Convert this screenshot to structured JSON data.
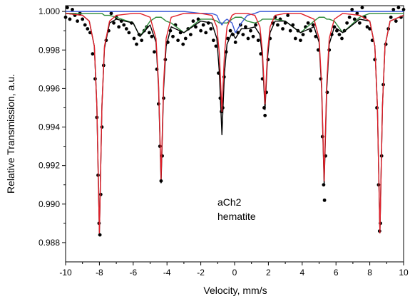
{
  "chart_data": {
    "type": "line",
    "xlabel": "Velocity, mm/s",
    "ylabel": "Relative Transmission, a.u.",
    "annotations": [
      "aCh2",
      "hematite"
    ],
    "xlim": [
      -10,
      10
    ],
    "xticks": [
      -10,
      -8,
      -6,
      -4,
      -2,
      0,
      2,
      4,
      6,
      8,
      10
    ],
    "ylim": [
      0.987,
      1.0003
    ],
    "yticks": [
      {
        "value": 0.988,
        "label": "0.988"
      },
      {
        "value": 0.99,
        "label": "0.990"
      },
      {
        "value": 0.992,
        "label": "0.992"
      },
      {
        "value": 0.994,
        "label": "0.994"
      },
      {
        "value": 0.996,
        "label": "0.996"
      },
      {
        "value": 0.998,
        "label": "0.998"
      },
      {
        "value": 1.0,
        "label": "1.000"
      }
    ],
    "x": [
      -10,
      -9,
      -8.6,
      -8.3,
      -8.15,
      -8,
      -7.85,
      -7.7,
      -7.4,
      -7,
      -6,
      -5.6,
      -5,
      -4.65,
      -4.5,
      -4.35,
      -4.2,
      -4.05,
      -3.75,
      -3,
      -2,
      -1.35,
      -1.05,
      -0.9,
      -0.75,
      -0.6,
      -0.45,
      -0.15,
      0.05,
      0.4,
      0.75,
      1.2,
      1.5,
      1.65,
      1.8,
      1.95,
      2.1,
      2.4,
      3,
      3.9,
      4.7,
      5,
      5.15,
      5.3,
      5.45,
      5.6,
      5.9,
      6.4,
      7.4,
      8,
      8.3,
      8.45,
      8.6,
      8.75,
      8.9,
      9.2,
      10
    ],
    "series": [
      {
        "type": "scatter",
        "color": "#000000",
        "x": [
          -10,
          -9.9,
          -9.75,
          -9.6,
          -9.45,
          -9.3,
          -9.15,
          -9.0,
          -8.85,
          -8.7,
          -8.55,
          -8.4,
          -8.25,
          -8.15,
          -8.08,
          -8.02,
          -7.97,
          -7.92,
          -7.85,
          -7.75,
          -7.6,
          -7.45,
          -7.3,
          -7.15,
          -7.0,
          -6.85,
          -6.7,
          -6.55,
          -6.4,
          -6.25,
          -6.1,
          -5.95,
          -5.8,
          -5.65,
          -5.5,
          -5.35,
          -5.2,
          -5.05,
          -4.9,
          -4.75,
          -4.6,
          -4.5,
          -4.42,
          -4.35,
          -4.28,
          -4.2,
          -4.1,
          -3.95,
          -3.8,
          -3.65,
          -3.5,
          -3.35,
          -3.2,
          -3.05,
          -2.9,
          -2.75,
          -2.6,
          -2.45,
          -2.3,
          -2.15,
          -2.0,
          -1.85,
          -1.7,
          -1.55,
          -1.4,
          -1.25,
          -1.1,
          -0.95,
          -0.85,
          -0.78,
          -0.7,
          -0.62,
          -0.5,
          -0.4,
          -0.25,
          -0.1,
          0.05,
          0.2,
          0.35,
          0.5,
          0.65,
          0.8,
          0.95,
          1.1,
          1.25,
          1.4,
          1.55,
          1.65,
          1.75,
          1.8,
          1.88,
          1.98,
          2.1,
          2.25,
          2.4,
          2.55,
          2.7,
          2.85,
          3.0,
          3.15,
          3.3,
          3.45,
          3.6,
          3.75,
          3.9,
          4.05,
          4.2,
          4.35,
          4.5,
          4.65,
          4.8,
          4.95,
          5.1,
          5.2,
          5.27,
          5.32,
          5.38,
          5.48,
          5.6,
          5.75,
          5.9,
          6.05,
          6.2,
          6.35,
          6.5,
          6.65,
          6.8,
          6.95,
          7.1,
          7.25,
          7.4,
          7.55,
          7.7,
          7.85,
          8.0,
          8.15,
          8.3,
          8.42,
          8.52,
          8.58,
          8.63,
          8.7,
          8.8,
          8.95,
          9.1,
          9.25,
          9.4,
          9.55,
          9.7,
          9.85,
          10
        ],
        "values": [
          0.9997,
          1.0002,
          0.9996,
          1.0001,
          0.9998,
          0.9995,
          0.9999,
          0.9996,
          0.9993,
          0.9991,
          0.9989,
          0.9978,
          0.9965,
          0.9945,
          0.9915,
          0.989,
          0.9884,
          0.9905,
          0.994,
          0.9972,
          0.9985,
          0.999,
          0.9999,
          0.9994,
          0.9997,
          0.9992,
          0.9995,
          0.9993,
          0.9991,
          0.9989,
          0.9994,
          0.9986,
          0.9983,
          0.9988,
          0.9985,
          0.999,
          0.9992,
          0.9989,
          0.9987,
          0.9979,
          0.997,
          0.9952,
          0.993,
          0.9912,
          0.9925,
          0.9955,
          0.9975,
          0.9984,
          0.999,
          0.9987,
          0.9993,
          0.9985,
          0.9989,
          0.9983,
          0.9986,
          0.9991,
          0.9988,
          0.9995,
          0.9992,
          0.9996,
          0.999,
          0.9993,
          0.9989,
          0.9994,
          0.9991,
          0.9985,
          0.9982,
          0.9968,
          0.9955,
          0.9948,
          0.995,
          0.9966,
          0.9979,
          0.9986,
          0.999,
          0.9988,
          0.9984,
          0.9989,
          0.9993,
          0.9988,
          0.9992,
          0.9986,
          0.999,
          0.9987,
          0.9993,
          0.9985,
          0.9978,
          0.9965,
          0.995,
          0.9946,
          0.9958,
          0.9975,
          0.9986,
          0.9994,
          0.9997,
          0.9993,
          0.9996,
          0.9991,
          0.9994,
          0.9998,
          0.999,
          0.9993,
          0.9986,
          0.999,
          0.9985,
          0.9988,
          0.9992,
          0.9994,
          0.999,
          0.9993,
          0.9987,
          0.998,
          0.9965,
          0.9935,
          0.991,
          0.9902,
          0.9925,
          0.9958,
          0.998,
          0.9988,
          0.9992,
          0.999,
          0.9988,
          0.9986,
          0.999,
          0.9994,
          0.9997,
          1.0001,
          0.9996,
          0.9999,
          0.9994,
          1.0002,
          0.9997,
          0.9992,
          0.9991,
          0.9985,
          0.9975,
          0.995,
          0.991,
          0.9886,
          0.989,
          0.9925,
          0.9962,
          0.9983,
          0.9991,
          0.9997,
          1.0001,
          0.9995,
          1.0002,
          0.9997,
          1.0001
        ]
      },
      {
        "type": "line",
        "color": "#2e8b3a",
        "values": [
          0.9999,
          0.9999,
          0.9999,
          0.9999,
          0.9999,
          0.9999,
          0.9999,
          0.9998,
          0.9998,
          0.9997,
          0.9994,
          0.9987,
          0.9995,
          0.9997,
          0.9997,
          0.9997,
          0.9996,
          0.9995,
          0.9994,
          0.9989,
          0.9996,
          0.9996,
          0.9995,
          0.9994,
          0.9994,
          0.9994,
          0.9994,
          0.9996,
          0.9997,
          0.9997,
          0.9995,
          0.9994,
          0.9995,
          0.9996,
          0.9996,
          0.9996,
          0.9996,
          0.9996,
          0.9995,
          0.9989,
          0.9995,
          0.9997,
          0.9997,
          0.9997,
          0.9996,
          0.9996,
          0.9995,
          0.9989,
          0.9997,
          0.9999,
          0.9999,
          0.9999,
          0.9999,
          0.9999,
          0.9999,
          0.9999,
          0.9999
        ]
      },
      {
        "type": "line",
        "color": "#3b5bd6",
        "values": [
          1.0,
          1.0,
          1.0,
          1.0,
          1.0,
          1.0,
          1.0,
          1.0,
          1.0,
          1.0,
          1.0,
          1.0,
          1.0,
          1.0,
          1.0,
          1.0,
          1.0,
          1.0,
          1.0,
          1.0,
          0.9999,
          0.9999,
          0.9998,
          0.9995,
          0.9993,
          0.9995,
          0.9996,
          0.9994,
          0.9989,
          0.9994,
          0.9998,
          0.9999,
          1.0,
          1.0,
          1.0,
          1.0,
          1.0,
          1.0,
          1.0,
          1.0,
          1.0,
          1.0,
          1.0,
          1.0,
          1.0,
          1.0,
          1.0,
          1.0,
          1.0,
          1.0,
          1.0,
          1.0,
          1.0,
          1.0,
          1.0,
          1.0,
          1.0
        ]
      },
      {
        "type": "line",
        "color": "#000000",
        "values": [
          0.9999,
          0.9998,
          0.9995,
          0.9982,
          0.9951,
          0.9885,
          0.9951,
          0.9981,
          0.9994,
          0.9996,
          0.9994,
          0.9987,
          0.9993,
          0.9984,
          0.9961,
          0.9911,
          0.996,
          0.9982,
          0.9992,
          0.9989,
          0.9995,
          0.9994,
          0.9986,
          0.9968,
          0.9936,
          0.9968,
          0.9983,
          0.9989,
          0.9986,
          0.9991,
          0.9991,
          0.9992,
          0.9988,
          0.9976,
          0.9949,
          0.9976,
          0.9989,
          0.9995,
          0.9995,
          0.9989,
          0.9992,
          0.9984,
          0.996,
          0.991,
          0.9959,
          0.9983,
          0.9992,
          0.9989,
          0.9996,
          0.9995,
          0.9982,
          0.9951,
          0.9885,
          0.9951,
          0.9982,
          0.9995,
          0.9998
        ]
      },
      {
        "type": "line",
        "color": "#e0202a",
        "values": [
          0.9999,
          0.9998,
          0.9995,
          0.9982,
          0.9951,
          0.9885,
          0.9951,
          0.9982,
          0.9995,
          0.9998,
          0.9999,
          0.9999,
          0.9997,
          0.9986,
          0.9963,
          0.9913,
          0.9963,
          0.9986,
          0.9997,
          0.9999,
          0.9999,
          0.9998,
          0.9992,
          0.9978,
          0.9948,
          0.9978,
          0.9992,
          0.9998,
          0.9999,
          0.9999,
          0.9999,
          0.9998,
          0.9992,
          0.9979,
          0.9952,
          0.9979,
          0.9992,
          0.9998,
          0.9999,
          0.9999,
          0.9996,
          0.9986,
          0.9962,
          0.9912,
          0.9962,
          0.9986,
          0.9996,
          0.9999,
          0.9998,
          0.9995,
          0.9982,
          0.9951,
          0.9885,
          0.9951,
          0.9982,
          0.9995,
          0.9998
        ]
      }
    ]
  }
}
